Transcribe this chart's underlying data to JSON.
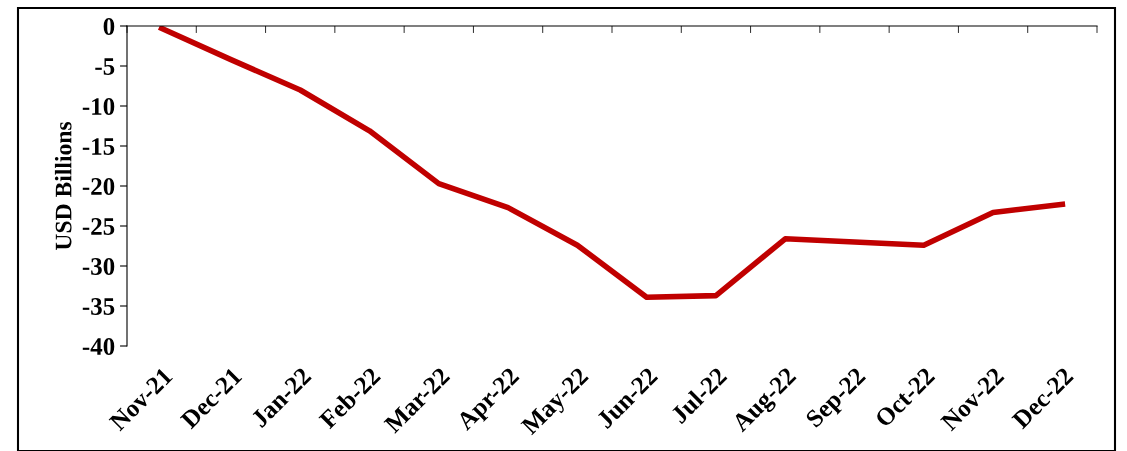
{
  "chart_data": {
    "type": "line",
    "ylabel": "USD Billions",
    "categories": [
      "Nov-21",
      "Dec-21",
      "Jan-22",
      "Feb-22",
      "Mar-22",
      "Apr-22",
      "May-22",
      "Jun-22",
      "Jul-22",
      "Aug-22",
      "Sep-22",
      "Oct-22",
      "Nov-22",
      "Dec-22"
    ],
    "series": [
      {
        "color": "#c00000",
        "values": [
          -0.3,
          -4.2,
          -8.0,
          -13.1,
          -19.7,
          -22.7,
          -27.4,
          -33.9,
          -33.7,
          -26.6,
          -27.0,
          -27.4,
          -23.3,
          -22.3
        ]
      }
    ],
    "ylim": [
      -40,
      0
    ],
    "yticks": [
      -40,
      -35,
      -30,
      -25,
      -20,
      -15,
      -10,
      -5,
      0
    ],
    "grid": false,
    "marker": "none",
    "line_style": "solid"
  }
}
